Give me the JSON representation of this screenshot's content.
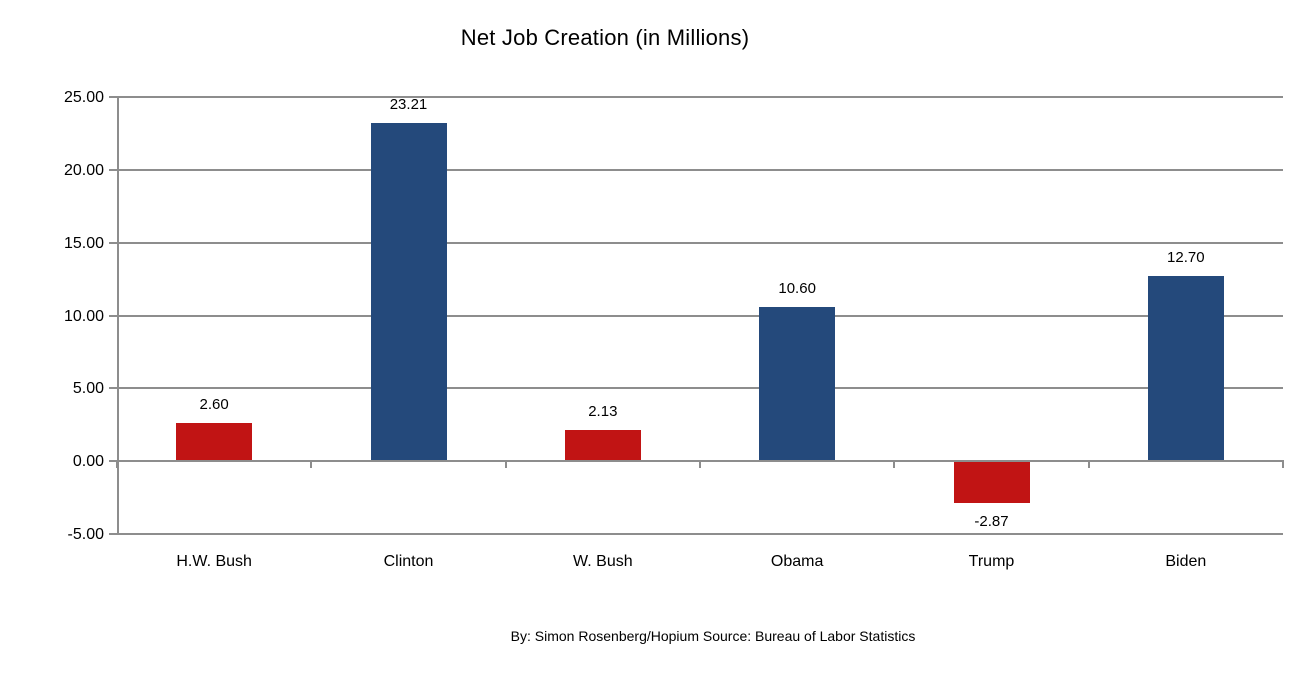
{
  "title": "Net Job Creation (in Millions)",
  "footer": "By: Simon Rosenberg/Hopium Source: Bureau of Labor Statistics",
  "colors": {
    "republican_red": "#c11414",
    "democrat_blue": "#24497b",
    "grid_gray": "#8d8d8d",
    "text_black": "#000000",
    "background": "#ffffff"
  },
  "chart_data": {
    "type": "bar",
    "title": "Net Job Creation (in Millions)",
    "categories": [
      "H.W. Bush",
      "Clinton",
      "W. Bush",
      "Obama",
      "Trump",
      "Biden"
    ],
    "values": [
      2.6,
      23.21,
      2.13,
      10.6,
      -2.87,
      12.7
    ],
    "value_labels": [
      "2.60",
      "23.21",
      "2.13",
      "10.60",
      "-2.87",
      "12.70"
    ],
    "bar_colors": [
      "#c11414",
      "#24497b",
      "#c11414",
      "#24497b",
      "#c11414",
      "#24497b"
    ],
    "xlabel": "",
    "ylabel": "",
    "ylim": [
      -5,
      25
    ],
    "ytick_step": 5,
    "ytick_labels": [
      "25.00",
      "20.00",
      "15.00",
      "10.00",
      "5.00",
      "0.00",
      "-5.00"
    ],
    "grid": true,
    "legend": false,
    "caption": "By: Simon Rosenberg/Hopium Source: Bureau of Labor Statistics"
  }
}
